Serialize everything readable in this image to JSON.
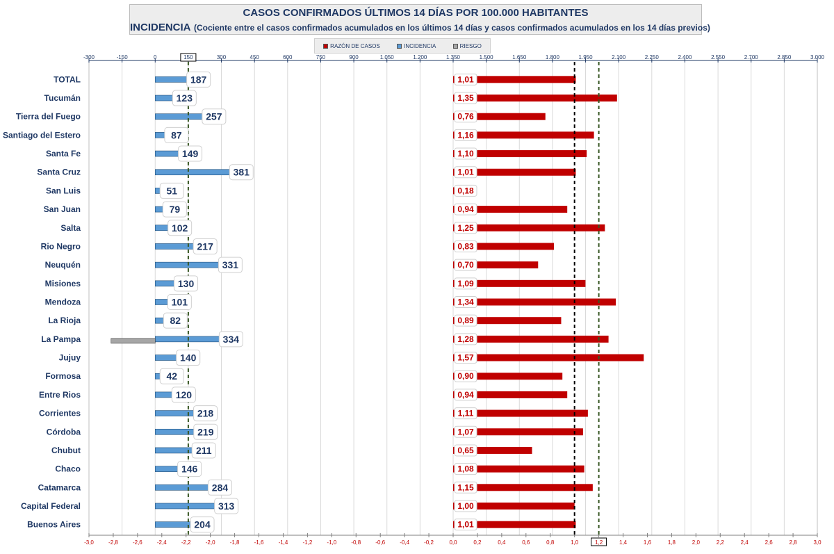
{
  "title": {
    "line1": "CASOS CONFIRMADOS ÚLTIMOS 14 DÍAS POR 100.000 HABITANTES",
    "line2_main": "INCIDENCIA",
    "line2_sub": "(Cociente entre el casos confirmados acumulados en los últimos 14 días y casos confirmados acumulados en los 14 días previos)"
  },
  "legend": [
    {
      "label": "RAZÓN DE CASOS",
      "color": "#c00000"
    },
    {
      "label": "INCIDENCIA",
      "color": "#5b9bd5"
    },
    {
      "label": "RIESGO",
      "color": "#a6a6a6"
    }
  ],
  "chart_data": {
    "type": "bar",
    "orientation": "horizontal",
    "categories": [
      "TOTAL",
      "Tucumán",
      "Tierra del Fuego",
      "Santiago del Estero",
      "Santa Fe",
      "Santa Cruz",
      "San Luis",
      "San Juan",
      "Salta",
      "Rio Negro",
      "Neuquén",
      "Misiones",
      "Mendoza",
      "La Rioja",
      "La Pampa",
      "Jujuy",
      "Formosa",
      "Entre Rios",
      "Corrientes",
      "Córdoba",
      "Chubut",
      "Chaco",
      "Catamarca",
      "Capital Federal",
      "Buenos Aires"
    ],
    "series": [
      {
        "name": "INCIDENCIA",
        "axis": "top",
        "color": "#5b9bd5",
        "values": [
          187,
          123,
          257,
          87,
          149,
          381,
          51,
          79,
          102,
          217,
          331,
          130,
          101,
          82,
          334,
          140,
          42,
          120,
          218,
          219,
          211,
          146,
          284,
          313,
          204
        ],
        "labels": [
          "187",
          "123",
          "257",
          "87",
          "149",
          "381",
          "51",
          "79",
          "102",
          "217",
          "331",
          "130",
          "101",
          "82",
          "334",
          "140",
          "42",
          "120",
          "218",
          "219",
          "211",
          "146",
          "284",
          "313",
          "204"
        ]
      },
      {
        "name": "RAZÓN DE CASOS",
        "axis": "bottom",
        "color": "#c00000",
        "values": [
          1.01,
          1.35,
          0.76,
          1.16,
          1.1,
          1.01,
          0.18,
          0.94,
          1.25,
          0.83,
          0.7,
          1.09,
          1.34,
          0.89,
          1.28,
          1.57,
          0.9,
          0.94,
          1.11,
          1.07,
          0.65,
          1.08,
          1.15,
          1.0,
          1.01
        ],
        "labels": [
          "1,01",
          "1,35",
          "0,76",
          "1,16",
          "1,10",
          "1,01",
          "0,18",
          "0,94",
          "1,25",
          "0,83",
          "0,70",
          "1,09",
          "1,34",
          "0,89",
          "1,28",
          "1,57",
          "0,90",
          "0,94",
          "1,11",
          "1,07",
          "0,65",
          "1,08",
          "1,15",
          "1,00",
          "1,01"
        ]
      },
      {
        "name": "RIESGO",
        "axis": "top",
        "color": "#a6a6a6",
        "values": [
          0,
          0,
          0,
          0,
          0,
          0,
          0,
          0,
          0,
          0,
          0,
          0,
          0,
          0,
          -200,
          0,
          0,
          0,
          0,
          0,
          0,
          0,
          0,
          0,
          0
        ]
      }
    ],
    "top_axis": {
      "range": [
        -300,
        3000
      ],
      "ticks": [
        -300,
        -150,
        0,
        150,
        300,
        450,
        600,
        750,
        900,
        1050,
        1200,
        1350,
        1500,
        1650,
        1800,
        1950,
        2100,
        2250,
        2400,
        2550,
        2700,
        2850,
        3000
      ],
      "tick_labels": [
        "-300",
        "-150",
        "0",
        "150",
        "300",
        "450",
        "600",
        "750",
        "900",
        "1.050",
        "1.200",
        "1.350",
        "1.500",
        "1.650",
        "1.800",
        "1.950",
        "2.100",
        "2.250",
        "2.400",
        "2.550",
        "2.700",
        "2.850",
        "3.000"
      ],
      "highlighted_tick": "150"
    },
    "bottom_axis": {
      "range": [
        -3.0,
        3.0
      ],
      "ticks": [
        -3.0,
        -2.8,
        -2.6,
        -2.4,
        -2.2,
        -2.0,
        -1.8,
        -1.6,
        -1.4,
        -1.2,
        -1.0,
        -0.8,
        -0.6,
        -0.4,
        -0.2,
        0.0,
        0.2,
        0.4,
        0.6,
        0.8,
        1.0,
        1.2,
        1.4,
        1.6,
        1.8,
        2.0,
        2.2,
        2.4,
        2.6,
        2.8,
        3.0
      ],
      "tick_labels": [
        "-3,0",
        "-2,8",
        "-2,6",
        "-2,4",
        "-2,2",
        "-2,0",
        "-1,8",
        "-1,6",
        "-1,4",
        "-1,2",
        "-1,0",
        "-0,8",
        "-0,6",
        "-0,4",
        "-0,2",
        "0,0",
        "0,2",
        "0,4",
        "0,6",
        "0,8",
        "1,0",
        "1,2",
        "1,4",
        "1,6",
        "1,8",
        "2,0",
        "2,2",
        "2,4",
        "2,6",
        "2,8",
        "3,0"
      ],
      "highlighted_tick": "1,2"
    },
    "reference_lines": [
      {
        "axis": "top",
        "value": 150,
        "style": "dashed",
        "color": "#375623"
      },
      {
        "axis": "bottom",
        "value": 1.2,
        "style": "dashed",
        "color": "#375623"
      },
      {
        "axis": "bottom",
        "value": 1.0,
        "style": "dashed",
        "color": "#000000"
      }
    ],
    "grid": true
  }
}
